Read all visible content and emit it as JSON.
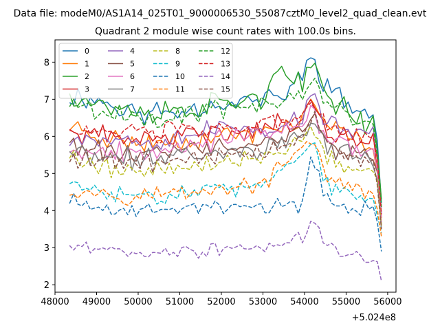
{
  "figure": {
    "suptitle": "Data file: modeM0/AS1A14_025T01_9000006530_55087cztM0_level2_quad_clean.evt",
    "title": "Quadrant 2 module wise count rates with 100.0s bins.",
    "x_offset_label": "+5.024e8"
  },
  "chart_data": {
    "type": "line",
    "title": "Quadrant 2 module wise count rates with 100.0s bins.",
    "xlabel": "",
    "ylabel": "",
    "x_offset": 502400000,
    "xlim": [
      48000,
      56200
    ],
    "ylim": [
      1.8,
      8.6
    ],
    "x_ticks": [
      48000,
      49000,
      50000,
      51000,
      52000,
      53000,
      54000,
      55000,
      56000
    ],
    "y_ticks": [
      2,
      3,
      4,
      5,
      6,
      7,
      8
    ],
    "bin_seconds": 100.0,
    "x_start": 48350,
    "x_step": 100,
    "n_points": 76,
    "legend": {
      "location": "top-left",
      "columns": 4
    },
    "series": [
      {
        "name": "0",
        "color": "#1f77b4",
        "linestyle": "solid",
        "keypoints": [
          [
            48350,
            7.1
          ],
          [
            49000,
            7.0
          ],
          [
            50000,
            6.6
          ],
          [
            51000,
            6.7
          ],
          [
            52000,
            6.9
          ],
          [
            53000,
            7.0
          ],
          [
            53500,
            7.1
          ],
          [
            54000,
            7.7
          ],
          [
            54200,
            8.3
          ],
          [
            54500,
            7.4
          ],
          [
            55000,
            6.9
          ],
          [
            55700,
            6.5
          ],
          [
            55850,
            4.2
          ]
        ],
        "amp": 0.25,
        "seed": 11
      },
      {
        "name": "1",
        "color": "#ff7f0e",
        "linestyle": "solid",
        "keypoints": [
          [
            48350,
            6.3
          ],
          [
            49000,
            6.0
          ],
          [
            50000,
            5.8
          ],
          [
            51000,
            5.9
          ],
          [
            52000,
            6.0
          ],
          [
            53000,
            6.1
          ],
          [
            54000,
            6.5
          ],
          [
            54200,
            7.0
          ],
          [
            54500,
            6.3
          ],
          [
            55000,
            6.0
          ],
          [
            55700,
            5.7
          ],
          [
            55850,
            3.9
          ]
        ],
        "amp": 0.22,
        "seed": 23
      },
      {
        "name": "2",
        "color": "#2ca02c",
        "linestyle": "solid",
        "keypoints": [
          [
            48350,
            7.2
          ],
          [
            49000,
            6.9
          ],
          [
            50000,
            6.6
          ],
          [
            51000,
            6.7
          ],
          [
            52000,
            6.9
          ],
          [
            53000,
            7.1
          ],
          [
            53400,
            7.7
          ],
          [
            54000,
            7.3
          ],
          [
            54200,
            8.0
          ],
          [
            54500,
            7.2
          ],
          [
            55000,
            6.7
          ],
          [
            55700,
            6.3
          ],
          [
            55850,
            4.3
          ]
        ],
        "amp": 0.26,
        "seed": 37
      },
      {
        "name": "3",
        "color": "#d62728",
        "linestyle": "solid",
        "keypoints": [
          [
            48350,
            6.1
          ],
          [
            49000,
            6.0
          ],
          [
            50000,
            5.9
          ],
          [
            51000,
            6.0
          ],
          [
            52000,
            6.1
          ],
          [
            53000,
            6.2
          ],
          [
            54000,
            6.5
          ],
          [
            54200,
            6.9
          ],
          [
            54500,
            6.2
          ],
          [
            55000,
            6.0
          ],
          [
            55700,
            5.8
          ],
          [
            55850,
            3.8
          ]
        ],
        "amp": 0.22,
        "seed": 41
      },
      {
        "name": "4",
        "color": "#9467bd",
        "linestyle": "solid",
        "keypoints": [
          [
            48350,
            6.0
          ],
          [
            49000,
            6.0
          ],
          [
            50000,
            5.9
          ],
          [
            51000,
            6.0
          ],
          [
            52000,
            6.2
          ],
          [
            53000,
            6.2
          ],
          [
            54000,
            6.5
          ],
          [
            54200,
            7.3
          ],
          [
            54500,
            6.4
          ],
          [
            55000,
            6.1
          ],
          [
            55700,
            6.1
          ],
          [
            55850,
            3.9
          ]
        ],
        "amp": 0.24,
        "seed": 53
      },
      {
        "name": "5",
        "color": "#8c564b",
        "linestyle": "solid",
        "keypoints": [
          [
            48350,
            5.8
          ],
          [
            49000,
            5.6
          ],
          [
            50000,
            5.5
          ],
          [
            51000,
            5.6
          ],
          [
            52000,
            5.7
          ],
          [
            53000,
            5.8
          ],
          [
            54000,
            6.1
          ],
          [
            54200,
            6.6
          ],
          [
            54500,
            5.9
          ],
          [
            55000,
            5.6
          ],
          [
            55700,
            5.4
          ],
          [
            55850,
            3.6
          ]
        ],
        "amp": 0.22,
        "seed": 61
      },
      {
        "name": "6",
        "color": "#e377c2",
        "linestyle": "solid",
        "keypoints": [
          [
            48350,
            5.7
          ],
          [
            49000,
            5.6
          ],
          [
            50000,
            5.6
          ],
          [
            51000,
            5.8
          ],
          [
            52000,
            5.9
          ],
          [
            53000,
            6.0
          ],
          [
            54000,
            6.3
          ],
          [
            54200,
            6.7
          ],
          [
            54500,
            6.0
          ],
          [
            55000,
            5.8
          ],
          [
            55700,
            5.6
          ],
          [
            55850,
            3.7
          ]
        ],
        "amp": 0.22,
        "seed": 67
      },
      {
        "name": "7",
        "color": "#7f7f7f",
        "linestyle": "solid",
        "keypoints": [
          [
            48350,
            5.6
          ],
          [
            49000,
            5.4
          ],
          [
            50000,
            5.4
          ],
          [
            51000,
            5.5
          ],
          [
            52000,
            5.6
          ],
          [
            53000,
            5.7
          ],
          [
            54000,
            6.0
          ],
          [
            54200,
            6.4
          ],
          [
            54500,
            5.8
          ],
          [
            55000,
            5.5
          ],
          [
            55700,
            5.4
          ],
          [
            55850,
            3.5
          ]
        ],
        "amp": 0.22,
        "seed": 71
      },
      {
        "name": "8",
        "color": "#bcbd22",
        "linestyle": "dashed",
        "keypoints": [
          [
            48350,
            5.5
          ],
          [
            49000,
            5.2
          ],
          [
            50000,
            5.1
          ],
          [
            51000,
            5.2
          ],
          [
            52000,
            5.3
          ],
          [
            53000,
            5.4
          ],
          [
            54000,
            6.0
          ],
          [
            54200,
            6.3
          ],
          [
            54500,
            5.5
          ],
          [
            55000,
            5.2
          ],
          [
            55700,
            5.1
          ],
          [
            55850,
            3.6
          ]
        ],
        "amp": 0.2,
        "seed": 79
      },
      {
        "name": "9",
        "color": "#17becf",
        "linestyle": "dashed",
        "keypoints": [
          [
            48350,
            4.7
          ],
          [
            49000,
            4.5
          ],
          [
            50000,
            4.4
          ],
          [
            51000,
            4.5
          ],
          [
            52000,
            4.6
          ],
          [
            53000,
            4.6
          ],
          [
            54000,
            5.6
          ],
          [
            54200,
            6.0
          ],
          [
            54500,
            4.7
          ],
          [
            55000,
            4.4
          ],
          [
            55700,
            4.3
          ],
          [
            55850,
            3.4
          ]
        ],
        "amp": 0.18,
        "seed": 83
      },
      {
        "name": "10",
        "color": "#1f77b4",
        "linestyle": "dashed",
        "keypoints": [
          [
            48350,
            4.3
          ],
          [
            49000,
            4.0
          ],
          [
            50000,
            4.0
          ],
          [
            51000,
            4.1
          ],
          [
            52000,
            4.1
          ],
          [
            53000,
            4.1
          ],
          [
            53900,
            4.1
          ],
          [
            54200,
            5.6
          ],
          [
            54500,
            4.3
          ],
          [
            55000,
            4.1
          ],
          [
            55700,
            4.0
          ],
          [
            55850,
            2.9
          ]
        ],
        "amp": 0.18,
        "seed": 89
      },
      {
        "name": "11",
        "color": "#ff7f0e",
        "linestyle": "dashed",
        "keypoints": [
          [
            48350,
            4.6
          ],
          [
            49000,
            4.5
          ],
          [
            50000,
            4.4
          ],
          [
            51000,
            4.5
          ],
          [
            52000,
            4.6
          ],
          [
            53000,
            4.7
          ],
          [
            54000,
            5.7
          ],
          [
            54200,
            6.1
          ],
          [
            54500,
            4.9
          ],
          [
            55000,
            4.6
          ],
          [
            55700,
            4.5
          ],
          [
            55850,
            3.3
          ]
        ],
        "amp": 0.18,
        "seed": 97
      },
      {
        "name": "12",
        "color": "#2ca02c",
        "linestyle": "dashed",
        "keypoints": [
          [
            48350,
            6.9
          ],
          [
            49000,
            6.7
          ],
          [
            50000,
            6.5
          ],
          [
            51000,
            6.6
          ],
          [
            52000,
            6.7
          ],
          [
            53000,
            6.8
          ],
          [
            54000,
            7.2
          ],
          [
            54200,
            7.6
          ],
          [
            54500,
            6.9
          ],
          [
            55000,
            6.6
          ],
          [
            55700,
            6.3
          ],
          [
            55850,
            4.1
          ]
        ],
        "amp": 0.22,
        "seed": 101
      },
      {
        "name": "13",
        "color": "#d62728",
        "linestyle": "dashed",
        "keypoints": [
          [
            48350,
            6.2
          ],
          [
            49000,
            6.1
          ],
          [
            50000,
            6.0
          ],
          [
            51000,
            6.1
          ],
          [
            52000,
            6.2
          ],
          [
            53000,
            6.3
          ],
          [
            54000,
            6.6
          ],
          [
            54200,
            7.0
          ],
          [
            54500,
            6.4
          ],
          [
            55000,
            6.1
          ],
          [
            55700,
            5.9
          ],
          [
            55850,
            3.9
          ]
        ],
        "amp": 0.22,
        "seed": 103
      },
      {
        "name": "14",
        "color": "#9467bd",
        "linestyle": "dashed",
        "keypoints": [
          [
            48350,
            3.0
          ],
          [
            49000,
            3.0
          ],
          [
            50000,
            2.9
          ],
          [
            51000,
            2.9
          ],
          [
            52000,
            2.9
          ],
          [
            53000,
            3.0
          ],
          [
            54000,
            3.3
          ],
          [
            54200,
            3.7
          ],
          [
            54500,
            3.1
          ],
          [
            55000,
            2.8
          ],
          [
            55700,
            2.8
          ],
          [
            55850,
            2.1
          ]
        ],
        "amp": 0.14,
        "seed": 107
      },
      {
        "name": "15",
        "color": "#8c564b",
        "linestyle": "dashed",
        "keypoints": [
          [
            48350,
            5.5
          ],
          [
            49000,
            5.3
          ],
          [
            50000,
            5.3
          ],
          [
            51000,
            5.4
          ],
          [
            52000,
            5.5
          ],
          [
            53000,
            5.6
          ],
          [
            54000,
            6.0
          ],
          [
            54200,
            6.6
          ],
          [
            54500,
            5.8
          ],
          [
            55000,
            5.4
          ],
          [
            55700,
            5.2
          ],
          [
            55850,
            3.5
          ]
        ],
        "amp": 0.22,
        "seed": 109
      }
    ]
  }
}
